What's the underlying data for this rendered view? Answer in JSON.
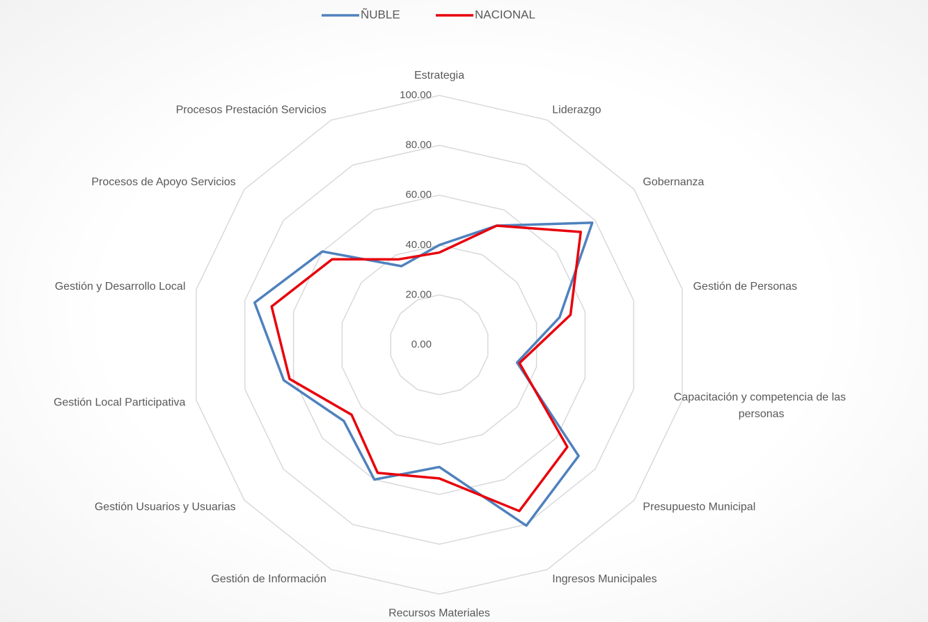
{
  "chart_data": {
    "type": "radar",
    "categories": [
      "Estrategia",
      "Liderazgo",
      "Gobernanza",
      "Gestión de Personas",
      "Capacitación y competencia de las personas",
      "Presupuesto Municipal",
      "Ingresos Municipales",
      "Recursos Materiales",
      "Gestión de Información",
      "Gestión Usuarios y Usuarias",
      "Gestión Local Participativa",
      "Gestión y Desarrollo Local",
      "Procesos de Apoyo Servicios",
      "Procesos Prestación Servicios"
    ],
    "series": [
      {
        "name": "ÑUBLE",
        "color": "#4f81bd",
        "values": [
          40,
          53,
          78.5,
          49.5,
          32,
          71.5,
          80.5,
          49,
          60,
          49,
          64,
          76,
          60,
          35
        ]
      },
      {
        "name": "NACIONAL",
        "color": "#e8000b",
        "values": [
          37,
          53,
          72.6,
          54,
          33,
          65.7,
          74,
          53.6,
          57,
          45,
          61.6,
          69,
          55,
          38
        ]
      }
    ],
    "ylim": [
      0,
      100
    ],
    "yticks": [
      {
        "value": 0,
        "label": "0.00"
      },
      {
        "value": 20,
        "label": "20.00"
      },
      {
        "value": 40,
        "label": "40.00"
      },
      {
        "value": 60,
        "label": "60.00"
      },
      {
        "value": 80,
        "label": "80.00"
      },
      {
        "value": 100,
        "label": "100.00"
      }
    ],
    "grid": true,
    "legend": "top"
  }
}
